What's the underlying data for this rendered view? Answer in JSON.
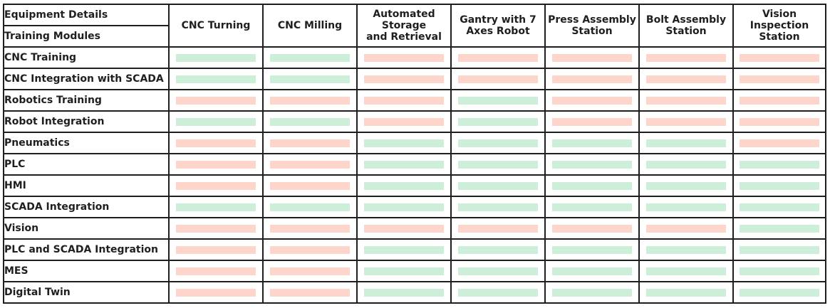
{
  "corner": {
    "top_label": "Equipment Details",
    "bottom_label": "Training Modules"
  },
  "columns": [
    "CNC Turning",
    "CNC Milling",
    "Automated\nStorage\nand Retrieval",
    "Gantry with 7\nAxes Robot",
    "Press Assembly\nStation",
    "Bolt Assembly\nStation",
    "Vision Inspection\nStation"
  ],
  "status_colors": {
    "yes": "#cdeed9",
    "no": "#fdd5cb"
  },
  "rows": [
    {
      "label": "CNC Training",
      "cells": [
        "yes",
        "yes",
        "no",
        "no",
        "no",
        "no",
        "no"
      ]
    },
    {
      "label": "CNC Integration with SCADA",
      "cells": [
        "yes",
        "yes",
        "no",
        "no",
        "no",
        "no",
        "no"
      ]
    },
    {
      "label": "Robotics Training",
      "cells": [
        "no",
        "no",
        "no",
        "yes",
        "no",
        "no",
        "no"
      ]
    },
    {
      "label": "Robot Integration",
      "cells": [
        "yes",
        "yes",
        "no",
        "yes",
        "no",
        "no",
        "no"
      ]
    },
    {
      "label": "Pneumatics",
      "cells": [
        "no",
        "no",
        "yes",
        "yes",
        "yes",
        "yes",
        "no"
      ]
    },
    {
      "label": "PLC",
      "cells": [
        "no",
        "no",
        "yes",
        "yes",
        "yes",
        "yes",
        "yes"
      ]
    },
    {
      "label": "HMI",
      "cells": [
        "no",
        "no",
        "yes",
        "yes",
        "yes",
        "yes",
        "yes"
      ]
    },
    {
      "label": "SCADA Integration",
      "cells": [
        "yes",
        "yes",
        "yes",
        "yes",
        "yes",
        "yes",
        "yes"
      ]
    },
    {
      "label": "Vision",
      "cells": [
        "no",
        "no",
        "no",
        "no",
        "no",
        "no",
        "yes"
      ]
    },
    {
      "label": "PLC and SCADA Integration",
      "cells": [
        "no",
        "no",
        "yes",
        "yes",
        "yes",
        "yes",
        "yes"
      ]
    },
    {
      "label": "MES",
      "cells": [
        "no",
        "no",
        "yes",
        "yes",
        "yes",
        "yes",
        "yes"
      ]
    },
    {
      "label": "Digital Twin",
      "cells": [
        "no",
        "no",
        "yes",
        "yes",
        "yes",
        "yes",
        "yes"
      ]
    }
  ]
}
